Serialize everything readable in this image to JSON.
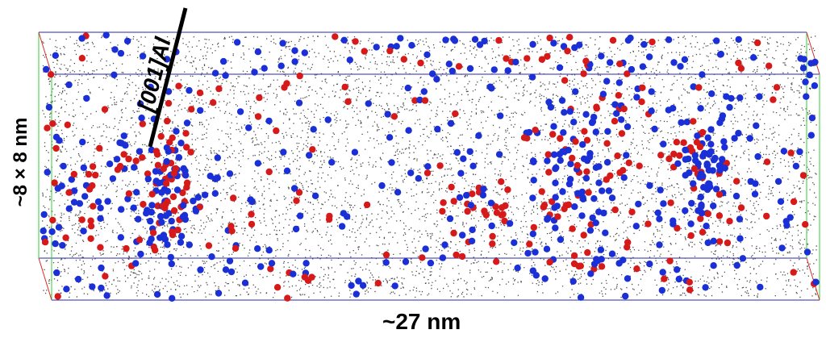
{
  "labels": {
    "direction": "[001]Al",
    "cross_section": "~8 × 8 nm",
    "length": "~27 nm"
  },
  "colors": {
    "background": "#ffffff",
    "matrix_atoms": "#111111",
    "solute_a": "#1a2fd6",
    "solute_b": "#d61a1a",
    "box_edge_top_bottom": "#2a2aa8",
    "box_edge_sides": "#33cc33",
    "box_edge_right": "#d62a2a"
  },
  "legend": []
}
